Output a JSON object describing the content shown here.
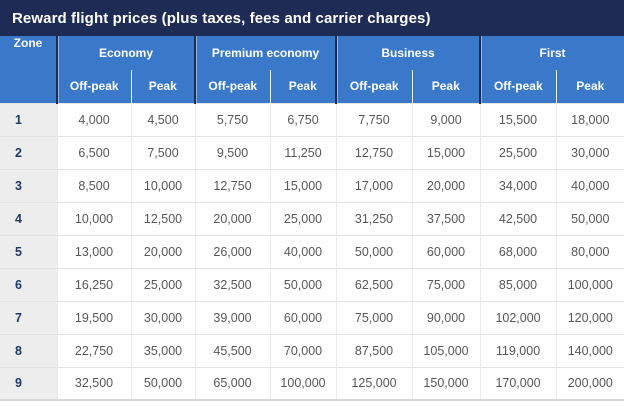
{
  "title": "Reward flight prices (plus taxes, fees and carrier charges)",
  "colors": {
    "title_bar_bg": "#1e2c55",
    "header_bg": "#3a79ca",
    "header_text": "#ffffff",
    "zone_column_bg": "#ededed",
    "zone_text": "#1f3a68",
    "price_text": "#575757",
    "row_divider": "#e4e4e4",
    "group_divider": "#1e2c55"
  },
  "table": {
    "zone_header": "Zone",
    "groups": [
      {
        "label": "Economy"
      },
      {
        "label": "Premium economy"
      },
      {
        "label": "Business"
      },
      {
        "label": "First"
      }
    ],
    "sub_headers": [
      "Off-peak",
      "Peak"
    ],
    "rows": [
      {
        "zone": "1",
        "values": [
          "4,000",
          "4,500",
          "5,750",
          "6,750",
          "7,750",
          "9,000",
          "15,500",
          "18,000"
        ]
      },
      {
        "zone": "2",
        "values": [
          "6,500",
          "7,500",
          "9,500",
          "11,250",
          "12,750",
          "15,000",
          "25,500",
          "30,000"
        ]
      },
      {
        "zone": "3",
        "values": [
          "8,500",
          "10,000",
          "12,750",
          "15,000",
          "17,000",
          "20,000",
          "34,000",
          "40,000"
        ]
      },
      {
        "zone": "4",
        "values": [
          "10,000",
          "12,500",
          "20,000",
          "25,000",
          "31,250",
          "37,500",
          "42,500",
          "50,000"
        ]
      },
      {
        "zone": "5",
        "values": [
          "13,000",
          "20,000",
          "26,000",
          "40,000",
          "50,000",
          "60,000",
          "68,000",
          "80,000"
        ]
      },
      {
        "zone": "6",
        "values": [
          "16,250",
          "25,000",
          "32,500",
          "50,000",
          "62,500",
          "75,000",
          "85,000",
          "100,000"
        ]
      },
      {
        "zone": "7",
        "values": [
          "19,500",
          "30,000",
          "39,000",
          "60,000",
          "75,000",
          "90,000",
          "102,000",
          "120,000"
        ]
      },
      {
        "zone": "8",
        "values": [
          "22,750",
          "35,000",
          "45,500",
          "70,000",
          "87,500",
          "105,000",
          "119,000",
          "140,000"
        ]
      },
      {
        "zone": "9",
        "values": [
          "32,500",
          "50,000",
          "65,000",
          "100,000",
          "125,000",
          "150,000",
          "170,000",
          "200,000"
        ]
      }
    ]
  },
  "chart_data": {
    "type": "table",
    "title": "Reward flight prices (plus taxes, fees and carrier charges)",
    "row_header": "Zone",
    "column_groups": [
      "Economy",
      "Premium economy",
      "Business",
      "First"
    ],
    "sub_columns": [
      "Off-peak",
      "Peak"
    ],
    "zones": [
      1,
      2,
      3,
      4,
      5,
      6,
      7,
      8,
      9
    ],
    "series": [
      {
        "name": "Economy Off-peak",
        "values": [
          4000,
          6500,
          8500,
          10000,
          13000,
          16250,
          19500,
          22750,
          32500
        ]
      },
      {
        "name": "Economy Peak",
        "values": [
          4500,
          7500,
          10000,
          12500,
          20000,
          25000,
          30000,
          35000,
          50000
        ]
      },
      {
        "name": "Premium economy Off-peak",
        "values": [
          5750,
          9500,
          12750,
          20000,
          26000,
          32500,
          39000,
          45500,
          65000
        ]
      },
      {
        "name": "Premium economy Peak",
        "values": [
          6750,
          11250,
          15000,
          25000,
          40000,
          50000,
          60000,
          70000,
          100000
        ]
      },
      {
        "name": "Business Off-peak",
        "values": [
          7750,
          12750,
          17000,
          31250,
          50000,
          62500,
          75000,
          87500,
          125000
        ]
      },
      {
        "name": "Business Peak",
        "values": [
          9000,
          15000,
          20000,
          37500,
          60000,
          75000,
          90000,
          105000,
          150000
        ]
      },
      {
        "name": "First Off-peak",
        "values": [
          15500,
          25500,
          34000,
          42500,
          68000,
          85000,
          102000,
          119000,
          170000
        ]
      },
      {
        "name": "First Peak",
        "values": [
          18000,
          30000,
          40000,
          50000,
          80000,
          100000,
          120000,
          140000,
          200000
        ]
      }
    ]
  }
}
